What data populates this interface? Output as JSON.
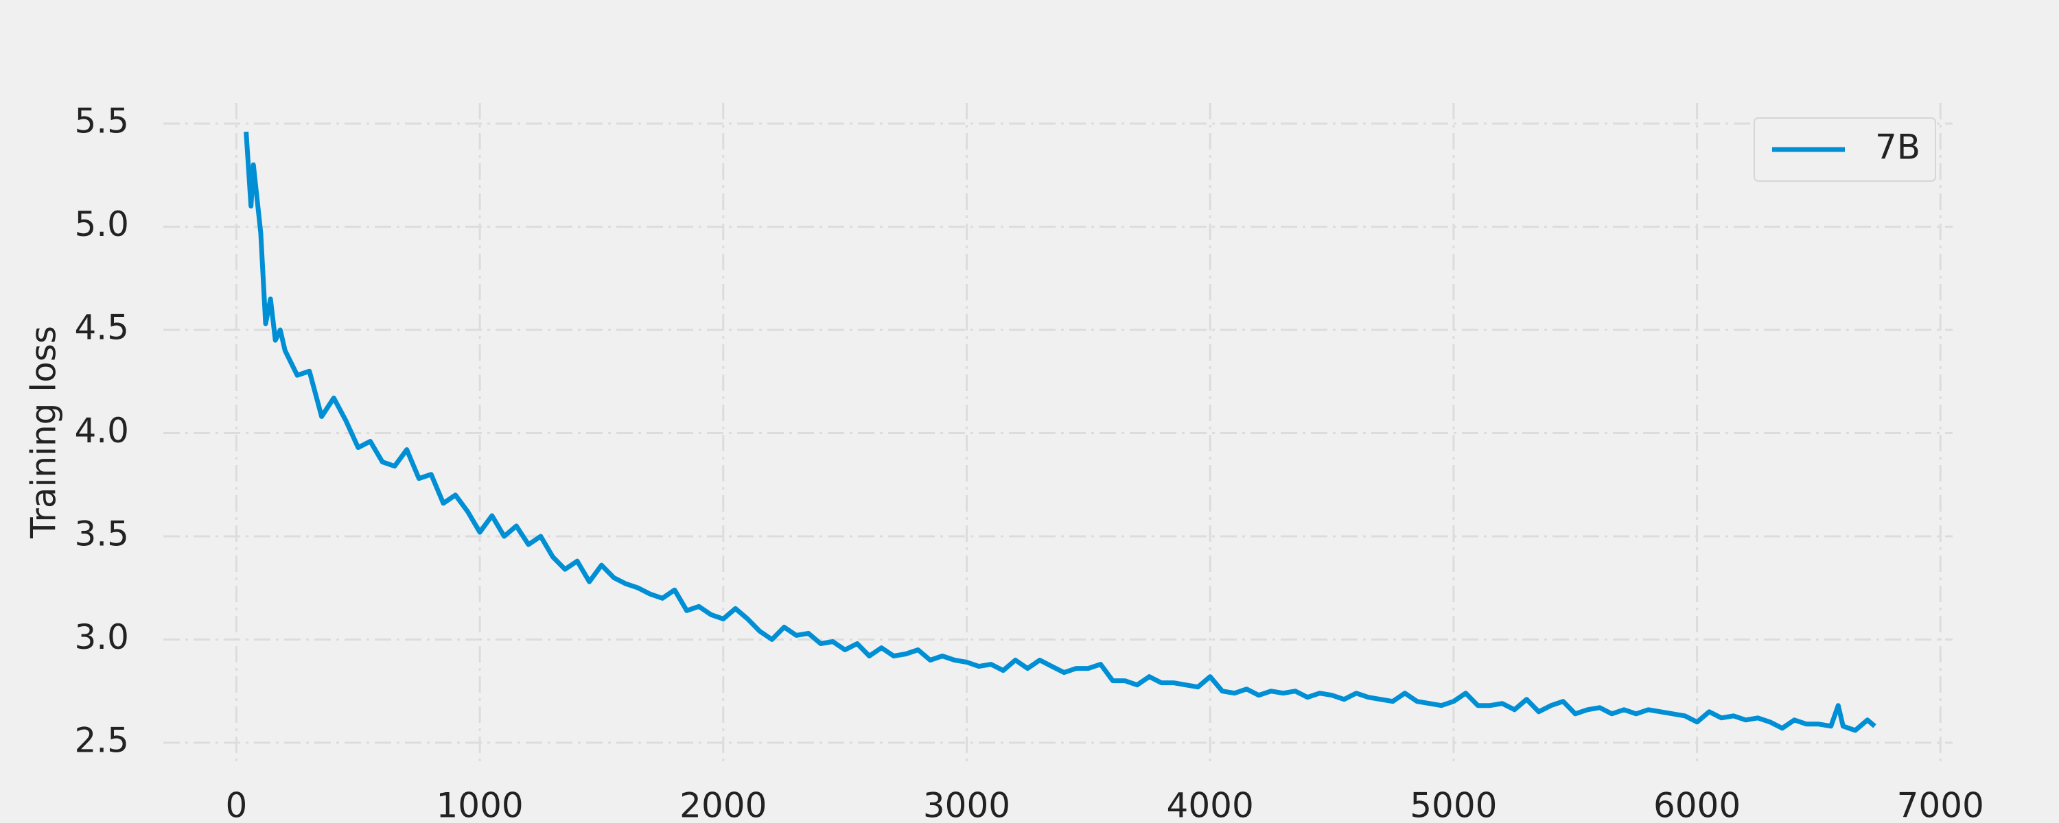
{
  "chart_data": {
    "type": "line",
    "ylabel": "Training loss",
    "x": [
      40,
      60,
      70,
      100,
      120,
      140,
      160,
      180,
      200,
      250,
      300,
      350,
      400,
      450,
      500,
      550,
      600,
      650,
      700,
      750,
      800,
      850,
      900,
      950,
      1000,
      1050,
      1100,
      1150,
      1200,
      1250,
      1300,
      1350,
      1400,
      1450,
      1500,
      1550,
      1600,
      1650,
      1700,
      1750,
      1800,
      1850,
      1900,
      1950,
      2000,
      2050,
      2100,
      2150,
      2200,
      2250,
      2300,
      2350,
      2400,
      2450,
      2500,
      2550,
      2600,
      2650,
      2700,
      2750,
      2800,
      2850,
      2900,
      2950,
      3000,
      3050,
      3100,
      3150,
      3200,
      3250,
      3300,
      3350,
      3400,
      3450,
      3500,
      3550,
      3600,
      3650,
      3700,
      3750,
      3800,
      3850,
      3900,
      3950,
      4000,
      4050,
      4100,
      4150,
      4200,
      4250,
      4300,
      4350,
      4400,
      4450,
      4500,
      4550,
      4600,
      4650,
      4700,
      4750,
      4800,
      4850,
      4900,
      4950,
      5000,
      5050,
      5100,
      5150,
      5200,
      5250,
      5300,
      5350,
      5400,
      5450,
      5500,
      5550,
      5600,
      5650,
      5700,
      5750,
      5800,
      5850,
      5900,
      5950,
      6000,
      6050,
      6100,
      6150,
      6200,
      6250,
      6300,
      6350,
      6400,
      6450,
      6500,
      6550,
      6580,
      6600,
      6650,
      6700,
      6730
    ],
    "series": [
      {
        "name": "7B",
        "color": "#008fd5",
        "values": [
          5.46,
          5.1,
          5.3,
          4.97,
          4.53,
          4.65,
          4.45,
          4.5,
          4.4,
          4.28,
          4.3,
          4.08,
          4.17,
          4.06,
          3.93,
          3.96,
          3.86,
          3.84,
          3.92,
          3.78,
          3.8,
          3.66,
          3.7,
          3.62,
          3.52,
          3.6,
          3.5,
          3.55,
          3.46,
          3.5,
          3.4,
          3.34,
          3.38,
          3.28,
          3.36,
          3.3,
          3.27,
          3.25,
          3.22,
          3.2,
          3.24,
          3.14,
          3.16,
          3.12,
          3.1,
          3.15,
          3.1,
          3.04,
          3.0,
          3.06,
          3.02,
          3.03,
          2.98,
          2.99,
          2.95,
          2.98,
          2.92,
          2.96,
          2.92,
          2.93,
          2.95,
          2.9,
          2.92,
          2.9,
          2.89,
          2.87,
          2.88,
          2.85,
          2.9,
          2.86,
          2.9,
          2.87,
          2.84,
          2.86,
          2.86,
          2.88,
          2.8,
          2.8,
          2.78,
          2.82,
          2.79,
          2.79,
          2.78,
          2.77,
          2.82,
          2.75,
          2.74,
          2.76,
          2.73,
          2.75,
          2.74,
          2.75,
          2.72,
          2.74,
          2.73,
          2.71,
          2.74,
          2.72,
          2.71,
          2.7,
          2.74,
          2.7,
          2.69,
          2.68,
          2.7,
          2.74,
          2.68,
          2.68,
          2.69,
          2.66,
          2.71,
          2.65,
          2.68,
          2.7,
          2.64,
          2.66,
          2.67,
          2.64,
          2.66,
          2.64,
          2.66,
          2.65,
          2.64,
          2.63,
          2.6,
          2.65,
          2.62,
          2.63,
          2.61,
          2.62,
          2.6,
          2.57,
          2.61,
          2.59,
          2.59,
          2.58,
          2.68,
          2.58,
          2.56,
          2.61,
          2.58
        ]
      }
    ],
    "xlim": [
      -300,
      7050
    ],
    "xticks": [
      0,
      1000,
      2000,
      3000,
      4000,
      5000,
      6000,
      7000
    ],
    "ylim": [
      2.41,
      5.6
    ],
    "yticks": [
      {
        "value": 2.5,
        "label": "2.5"
      },
      {
        "value": 3,
        "label": "3.0"
      },
      {
        "value": 3.5,
        "label": "3.5"
      },
      {
        "value": 4,
        "label": "4.0"
      },
      {
        "value": 4.5,
        "label": "4.5"
      },
      {
        "value": 5,
        "label": "5.0"
      },
      {
        "value": 5.5,
        "label": "5.5"
      }
    ],
    "grid": true,
    "legend": "upper right"
  }
}
